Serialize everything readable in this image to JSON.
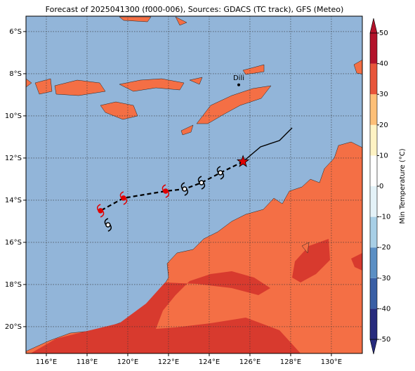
{
  "title": "Forecast of 2025041300 (f000-006), Sources: GDACS (TC track), GFS (Meteo)",
  "map": {
    "xlim": [
      115.0,
      131.52
    ],
    "ylim": [
      -21.27,
      -5.27
    ],
    "xticks": [
      {
        "value": 116,
        "label": "116°E"
      },
      {
        "value": 118,
        "label": "118°E"
      },
      {
        "value": 120,
        "label": "120°E"
      },
      {
        "value": 122,
        "label": "122°E"
      },
      {
        "value": 124,
        "label": "124°E"
      },
      {
        "value": 126,
        "label": "126°E"
      },
      {
        "value": 128,
        "label": "128°E"
      },
      {
        "value": 130,
        "label": "130°E"
      }
    ],
    "yticks": [
      {
        "value": -6,
        "label": "6°S"
      },
      {
        "value": -8,
        "label": "8°S"
      },
      {
        "value": -10,
        "label": "10°S"
      },
      {
        "value": -12,
        "label": "12°S"
      },
      {
        "value": -14,
        "label": "14°S"
      },
      {
        "value": -16,
        "label": "16°S"
      },
      {
        "value": -18,
        "label": "18°S"
      },
      {
        "value": -20,
        "label": "20°S"
      }
    ],
    "place": {
      "name": "Dili",
      "lon": 125.45,
      "lat": -8.53
    },
    "past_track": {
      "lon": [
        128.07,
        127.45,
        126.52,
        125.66
      ],
      "lat": [
        -10.57,
        -11.17,
        -11.47,
        -12.17
      ]
    },
    "forecast_track": {
      "lon": [
        125.66,
        124.55,
        123.62,
        122.79,
        121.86,
        119.79,
        118.66
      ],
      "lat": [
        -12.17,
        -12.7,
        -13.17,
        -13.47,
        -13.57,
        -13.9,
        -14.5
      ]
    },
    "symbols": [
      {
        "lon": 124.55,
        "lat": -12.7,
        "color": "#000000"
      },
      {
        "lon": 123.62,
        "lat": -13.17,
        "color": "#000000"
      },
      {
        "lon": 122.79,
        "lat": -13.47,
        "color": "#000000"
      },
      {
        "lon": 121.86,
        "lat": -13.57,
        "color": "#e00000"
      },
      {
        "lon": 119.79,
        "lat": -13.9,
        "color": "#e00000"
      },
      {
        "lon": 118.66,
        "lat": -14.5,
        "color": "#e00000"
      },
      {
        "lon": 119.03,
        "lat": -15.17,
        "color": "#000000"
      }
    ]
  },
  "colorbar": {
    "label": "Min Temperature (°C)",
    "lim": [
      -50,
      50
    ],
    "ticks": [
      -50,
      -40,
      -30,
      -20,
      -10,
      0,
      10,
      20,
      30,
      40,
      50
    ],
    "colors": [
      "#272b7d",
      "#3a5fa5",
      "#5b8fc4",
      "#a8cfe6",
      "#e4f2f8",
      "#ffffff",
      "#fff3c4",
      "#fdbf77",
      "#e8553a",
      "#b3122a"
    ]
  }
}
